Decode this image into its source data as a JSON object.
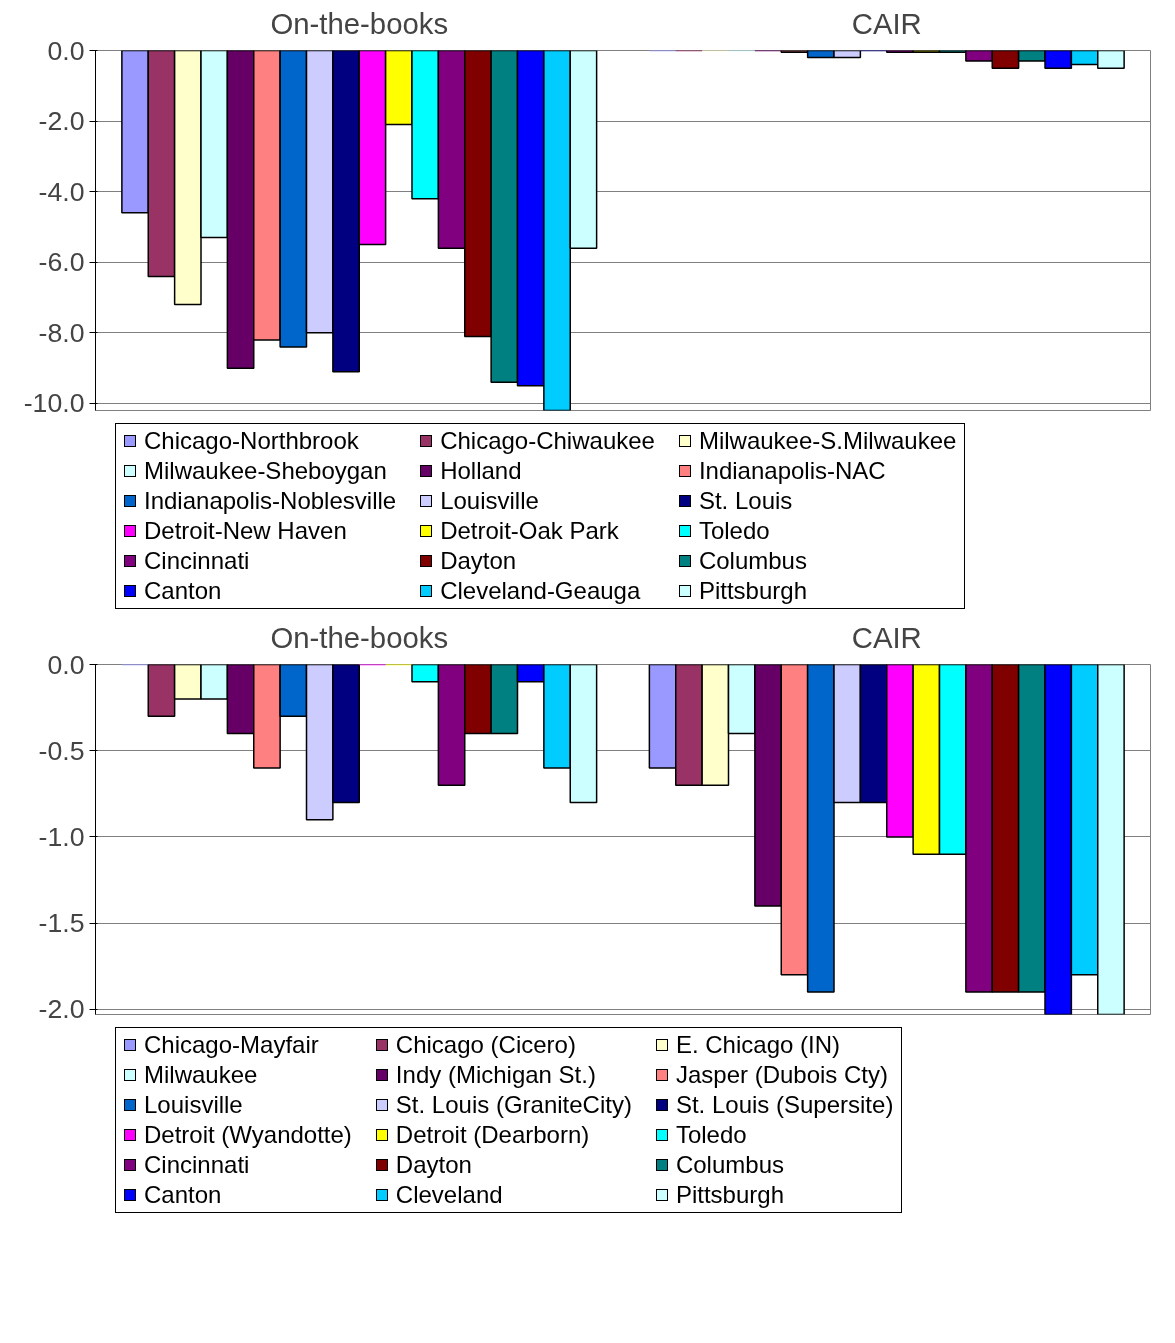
{
  "chart_data": [
    {
      "type": "bar",
      "categories": [
        "On-the-books",
        "CAIR"
      ],
      "ylim": [
        -10.2,
        0
      ],
      "yticks": [
        {
          "value": 0,
          "label": "0.0"
        },
        {
          "value": -2,
          "label": "-2.0"
        },
        {
          "value": -4,
          "label": "-4.0"
        },
        {
          "value": -6,
          "label": "-6.0"
        },
        {
          "value": -8,
          "label": "-8.0"
        },
        {
          "value": -10,
          "label": "-10.0"
        }
      ],
      "grid": "y",
      "legend": "bottom",
      "series": [
        {
          "name": "Chicago-Northbrook",
          "color": "#9999ff",
          "values": [
            -4.6,
            0
          ]
        },
        {
          "name": "Chicago-Chiwaukee",
          "color": "#993366",
          "values": [
            -6.4,
            0
          ]
        },
        {
          "name": "Milwaukee-S.Milwaukee",
          "color": "#ffffcc",
          "values": [
            -7.2,
            0
          ]
        },
        {
          "name": "Milwaukee-Sheboygan",
          "color": "#ccffff",
          "values": [
            -5.3,
            0
          ]
        },
        {
          "name": "Holland",
          "color": "#660066",
          "values": [
            -9.0,
            0
          ]
        },
        {
          "name": "Indianapolis-NAC",
          "color": "#ff8080",
          "values": [
            -8.2,
            -0.05
          ]
        },
        {
          "name": "Indianapolis-Noblesville",
          "color": "#0066cc",
          "values": [
            -8.4,
            -0.2
          ]
        },
        {
          "name": "Louisville",
          "color": "#ccccff",
          "values": [
            -8.0,
            -0.2
          ]
        },
        {
          "name": "St. Louis",
          "color": "#000080",
          "values": [
            -9.1,
            0
          ]
        },
        {
          "name": "Detroit-New Haven",
          "color": "#ff00ff",
          "values": [
            -5.5,
            -0.05
          ]
        },
        {
          "name": "Detroit-Oak Park",
          "color": "#ffff00",
          "values": [
            -2.1,
            -0.05
          ]
        },
        {
          "name": "Toledo",
          "color": "#00ffff",
          "values": [
            -4.2,
            -0.05
          ]
        },
        {
          "name": "Cincinnati",
          "color": "#800080",
          "values": [
            -5.6,
            -0.3
          ]
        },
        {
          "name": "Dayton",
          "color": "#800000",
          "values": [
            -8.1,
            -0.5
          ]
        },
        {
          "name": "Columbus",
          "color": "#008080",
          "values": [
            -9.4,
            -0.3
          ]
        },
        {
          "name": "Canton",
          "color": "#0000ff",
          "values": [
            -9.5,
            -0.5
          ]
        },
        {
          "name": "Cleveland-Geauga",
          "color": "#00ccff",
          "values": [
            -10.2,
            -0.4
          ]
        },
        {
          "name": "Pittsburgh",
          "color": "#ccffff",
          "values": [
            -5.6,
            -0.5
          ]
        }
      ]
    },
    {
      "type": "bar",
      "categories": [
        "On-the-books",
        "CAIR"
      ],
      "ylim": [
        -2.03,
        0
      ],
      "yticks": [
        {
          "value": 0,
          "label": "0.0"
        },
        {
          "value": -0.5,
          "label": "-0.5"
        },
        {
          "value": -1,
          "label": "-1.0"
        },
        {
          "value": -1.5,
          "label": "-1.5"
        },
        {
          "value": -2,
          "label": "-2.0"
        }
      ],
      "grid": "y",
      "legend": "bottom",
      "series": [
        {
          "name": "Chicago-Mayfair",
          "color": "#9999ff",
          "values": [
            0,
            -0.6
          ]
        },
        {
          "name": "Chicago (Cicero)",
          "color": "#993366",
          "values": [
            -0.3,
            -0.7
          ]
        },
        {
          "name": "E. Chicago (IN)",
          "color": "#ffffcc",
          "values": [
            -0.2,
            -0.7
          ]
        },
        {
          "name": "Milwaukee",
          "color": "#ccffff",
          "values": [
            -0.2,
            -0.4
          ]
        },
        {
          "name": "Indy (Michigan St.)",
          "color": "#660066",
          "values": [
            -0.4,
            -1.4
          ]
        },
        {
          "name": "Jasper (Dubois Cty)",
          "color": "#ff8080",
          "values": [
            -0.6,
            -1.8
          ]
        },
        {
          "name": "Louisville",
          "color": "#0066cc",
          "values": [
            -0.3,
            -1.9
          ]
        },
        {
          "name": "St. Louis (GraniteCity)",
          "color": "#ccccff",
          "values": [
            -0.9,
            -0.8
          ]
        },
        {
          "name": "St. Louis (Supersite)",
          "color": "#000080",
          "values": [
            -0.8,
            -0.8
          ]
        },
        {
          "name": "Detroit (Wyandotte)",
          "color": "#ff00ff",
          "values": [
            0,
            -1.0
          ]
        },
        {
          "name": "Detroit (Dearborn)",
          "color": "#ffff00",
          "values": [
            0,
            -1.1
          ]
        },
        {
          "name": "Toledo",
          "color": "#00ffff",
          "values": [
            -0.1,
            -1.1
          ]
        },
        {
          "name": "Cincinnati",
          "color": "#800080",
          "values": [
            -0.7,
            -1.9
          ]
        },
        {
          "name": "Dayton",
          "color": "#800000",
          "values": [
            -0.4,
            -1.9
          ]
        },
        {
          "name": "Columbus",
          "color": "#008080",
          "values": [
            -0.4,
            -1.9
          ]
        },
        {
          "name": "Canton",
          "color": "#0000ff",
          "values": [
            -0.1,
            -2.03
          ]
        },
        {
          "name": "Cleveland",
          "color": "#00ccff",
          "values": [
            -0.6,
            -1.8
          ]
        },
        {
          "name": "Pittsburgh",
          "color": "#ccffff",
          "values": [
            -0.8,
            -2.03
          ]
        }
      ]
    }
  ]
}
